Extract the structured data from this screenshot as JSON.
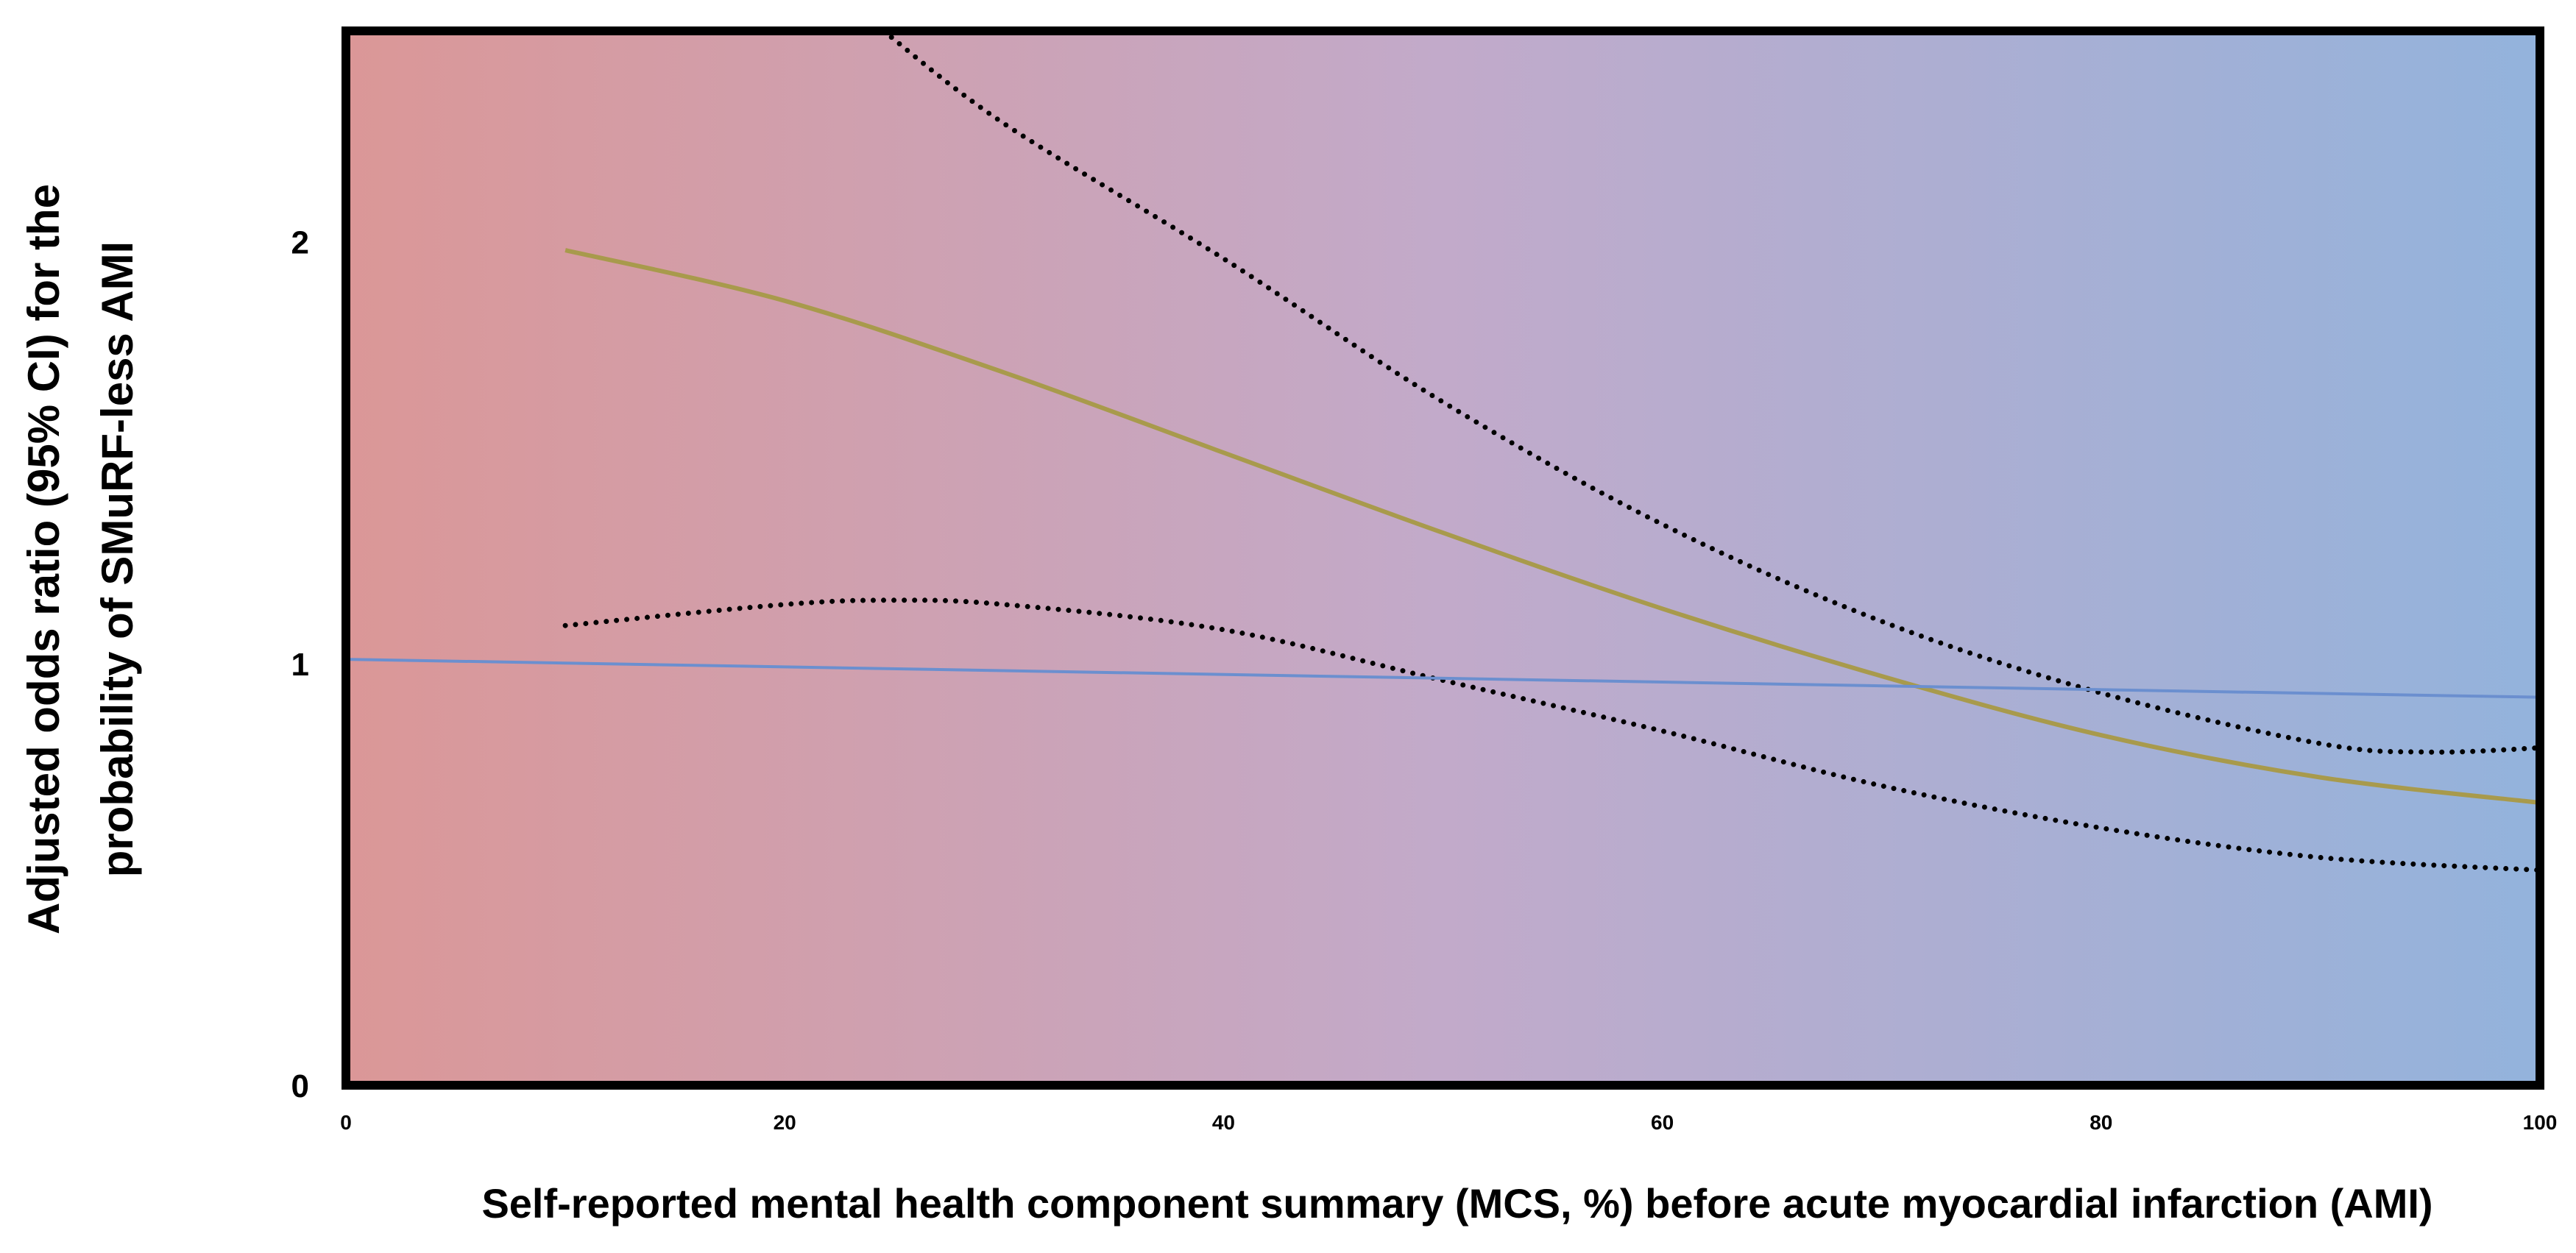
{
  "chart_data": {
    "type": "line",
    "title": "",
    "ylabel_lines": [
      "Adjusted odds ratio (95% CI) for the",
      "probability of SMuRF-less AMI"
    ],
    "xlabel": "Self-reported mental health component summary (MCS, %) before acute myocardial infarction (AMI)",
    "xlim": [
      0,
      100
    ],
    "ylim": [
      0,
      2.5
    ],
    "x_ticks": [
      "0",
      "20",
      "40",
      "60",
      "80",
      "100"
    ],
    "y_ticks": [
      "0",
      "1",
      "2"
    ],
    "grid": false,
    "legend": "none",
    "background_gradient": {
      "left_color": "#db9797",
      "mid_color": "#c2aaca",
      "right_color": "#93b3dc"
    },
    "series": [
      {
        "role": "odds-ratio",
        "style": "solid",
        "color": "#a89a4c",
        "x": [
          10,
          20,
          30,
          40,
          50,
          60,
          70,
          80,
          90,
          100
        ],
        "y": [
          1.98,
          1.86,
          1.69,
          1.5,
          1.31,
          1.13,
          0.97,
          0.83,
          0.73,
          0.67
        ]
      },
      {
        "role": "upper-95-ci",
        "style": "dotted",
        "color": "#000000",
        "x": [
          24.5,
          30,
          40,
          50,
          60,
          70,
          80,
          90,
          95,
          100
        ],
        "y": [
          2.5,
          2.28,
          1.96,
          1.62,
          1.33,
          1.1,
          0.93,
          0.81,
          0.79,
          0.8
        ]
      },
      {
        "role": "lower-95-ci",
        "style": "dotted",
        "color": "#000000",
        "x": [
          10,
          20,
          25,
          30,
          40,
          50,
          60,
          70,
          80,
          90,
          100
        ],
        "y": [
          1.09,
          1.14,
          1.15,
          1.14,
          1.08,
          0.96,
          0.84,
          0.71,
          0.61,
          0.54,
          0.51
        ]
      },
      {
        "role": "reference",
        "style": "solid",
        "color": "#6b8fcf",
        "x": [
          0,
          100
        ],
        "y": [
          1.01,
          0.92
        ]
      }
    ]
  }
}
